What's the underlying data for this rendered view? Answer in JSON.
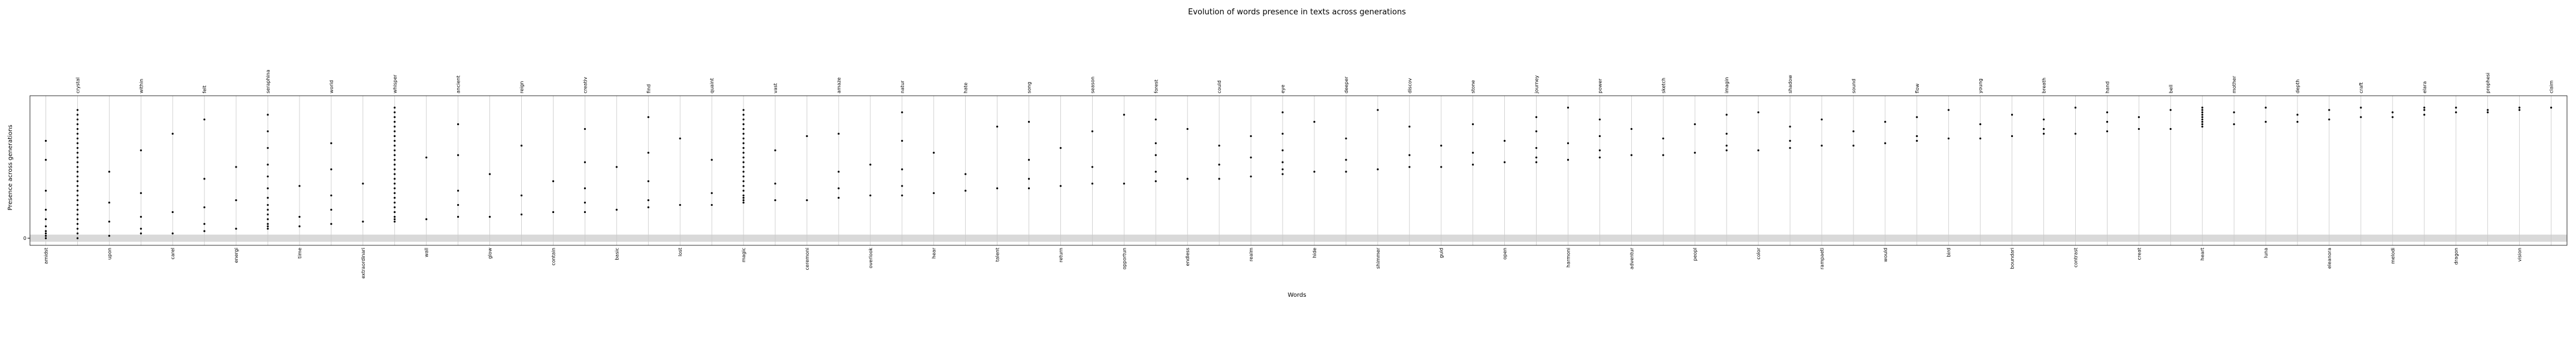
{
  "chart_data": {
    "type": "presence",
    "title": "Evolution of words presence in texts across generations",
    "x_label": "Words",
    "y_label": "Presence across generations",
    "categories": [
      "amidst",
      "crystal",
      "upon",
      "within",
      "carel",
      "felt",
      "energi",
      "seraphina",
      "time",
      "world",
      "extraordinari",
      "whisper",
      "wall",
      "ancient",
      "glow",
      "reign",
      "contain",
      "creativ",
      "basic",
      "find",
      "lost",
      "quaint",
      "magic",
      "vast",
      "ceremoni",
      "amaze",
      "overlook",
      "natur",
      "hear",
      "hate",
      "talent",
      "song",
      "return",
      "season",
      "opportun",
      "forest",
      "endless",
      "could",
      "realm",
      "eye",
      "hide",
      "deeper",
      "shimmer",
      "discov",
      "guid",
      "stone",
      "open",
      "journey",
      "harmoni",
      "power",
      "adventur",
      "sketch",
      "peopl",
      "imagin",
      "color",
      "shadow",
      "rampaeti",
      "sound",
      "would",
      "flow",
      "bird",
      "young",
      "boundari",
      "breath",
      "contrast",
      "hand",
      "creat",
      "bell",
      "heart",
      "mother",
      "luna",
      "depth",
      "eleanora",
      "craft",
      "melodi",
      "elara",
      "dragon",
      "prophesi",
      "vision",
      "claim"
    ],
    "presence": [
      [
        0,
        1,
        2,
        3,
        5,
        8,
        12,
        20,
        33,
        41
      ],
      [
        0,
        2,
        4,
        6,
        8,
        10,
        12,
        14,
        16,
        18,
        20,
        22,
        24,
        26,
        28,
        30,
        32,
        34,
        36,
        38,
        40,
        42,
        44,
        46,
        48,
        50,
        52,
        54
      ],
      [
        1,
        7,
        15,
        28
      ],
      [
        2,
        4,
        9,
        19,
        37
      ],
      [
        2,
        11,
        44
      ],
      [
        3,
        6,
        13,
        25,
        50
      ],
      [
        4,
        16,
        30
      ],
      [
        4,
        5,
        6,
        8,
        10,
        12,
        14,
        17,
        21,
        26,
        31,
        38,
        45,
        52
      ],
      [
        5,
        9,
        22
      ],
      [
        6,
        12,
        18,
        29,
        40
      ],
      [
        7,
        23
      ],
      [
        7,
        8,
        9,
        11,
        13,
        15,
        17,
        19,
        21,
        23,
        25,
        27,
        29,
        31,
        33,
        35,
        37,
        39,
        41,
        43,
        45,
        47,
        49,
        51,
        53,
        55
      ],
      [
        8,
        34
      ],
      [
        9,
        14,
        20,
        35,
        48
      ],
      [
        9,
        27
      ],
      [
        10,
        18,
        39
      ],
      [
        11,
        24
      ],
      [
        11,
        15,
        21,
        32,
        46
      ],
      [
        12,
        30
      ],
      [
        13,
        16,
        24,
        36,
        51
      ],
      [
        14,
        42
      ],
      [
        14,
        19,
        33
      ],
      [
        15,
        16,
        17,
        18,
        20,
        22,
        24,
        26,
        28,
        30,
        32,
        34,
        36,
        38,
        40,
        42,
        44,
        46,
        48,
        50,
        52,
        54
      ],
      [
        16,
        23,
        37
      ],
      [
        16,
        43
      ],
      [
        17,
        21,
        28,
        44
      ],
      [
        18,
        31
      ],
      [
        18,
        22,
        29,
        41,
        53
      ],
      [
        19,
        36
      ],
      [
        20,
        27
      ],
      [
        21,
        47
      ],
      [
        21,
        25,
        33,
        49
      ],
      [
        22,
        38
      ],
      [
        23,
        30,
        45
      ],
      [
        23,
        52
      ],
      [
        24,
        28,
        35,
        40,
        50
      ],
      [
        25,
        46
      ],
      [
        25,
        31,
        39
      ],
      [
        26,
        34,
        43
      ],
      [
        27,
        29,
        32,
        37,
        44,
        53
      ],
      [
        28,
        49
      ],
      [
        28,
        33,
        42
      ],
      [
        29,
        54
      ],
      [
        30,
        35,
        47
      ],
      [
        30,
        39
      ],
      [
        31,
        36,
        48
      ],
      [
        32,
        41
      ],
      [
        32,
        34,
        38,
        45,
        51
      ],
      [
        33,
        40,
        55
      ],
      [
        34,
        37,
        43,
        50
      ],
      [
        35,
        46
      ],
      [
        35,
        42
      ],
      [
        36,
        48
      ],
      [
        37,
        39,
        44,
        52
      ],
      [
        37,
        53
      ],
      [
        38,
        41,
        47
      ],
      [
        39,
        50
      ],
      [
        39,
        45
      ],
      [
        40,
        49
      ],
      [
        41,
        43,
        51
      ],
      [
        42,
        54
      ],
      [
        42,
        48
      ],
      [
        43,
        52
      ],
      [
        44,
        46,
        50
      ],
      [
        44,
        55
      ],
      [
        45,
        49,
        53
      ],
      [
        46,
        51
      ],
      [
        46,
        54
      ],
      [
        47,
        48,
        49,
        50,
        51,
        52,
        53,
        54,
        55
      ],
      [
        48,
        53
      ],
      [
        49,
        55
      ],
      [
        49,
        52
      ],
      [
        50,
        54
      ],
      [
        51,
        55
      ],
      [
        51,
        53
      ],
      [
        52,
        54,
        55
      ],
      [
        53,
        55
      ],
      [
        53,
        54
      ],
      [
        54,
        55
      ],
      [
        55
      ]
    ],
    "color": "#000000",
    "ylim": [
      -3,
      60
    ],
    "yticks": [
      0
    ],
    "highlight_band": [
      -1.5,
      1.5
    ],
    "band_color": "#d9d9d9",
    "grid": true
  }
}
